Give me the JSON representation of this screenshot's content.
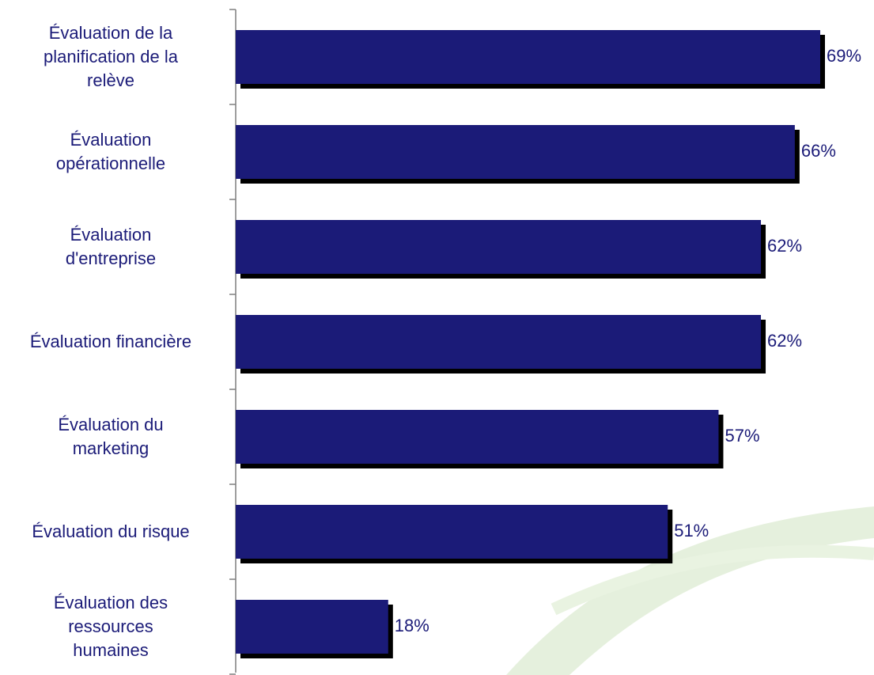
{
  "chart_data": {
    "type": "barh",
    "categories": [
      "Évaluation de la\nplanification de la\nrelève",
      "Évaluation\nopérationnelle",
      "Évaluation\nd'entreprise",
      "Évaluation financière",
      "Évaluation du\nmarketing",
      "Évaluation du risque",
      "Évaluation des\nressources\nhumaines"
    ],
    "values": [
      69,
      66,
      62,
      62,
      57,
      51,
      18
    ],
    "value_labels": [
      "69%",
      "66%",
      "62%",
      "62%",
      "57%",
      "51%",
      "18%"
    ],
    "color": "#1b1b78"
  }
}
